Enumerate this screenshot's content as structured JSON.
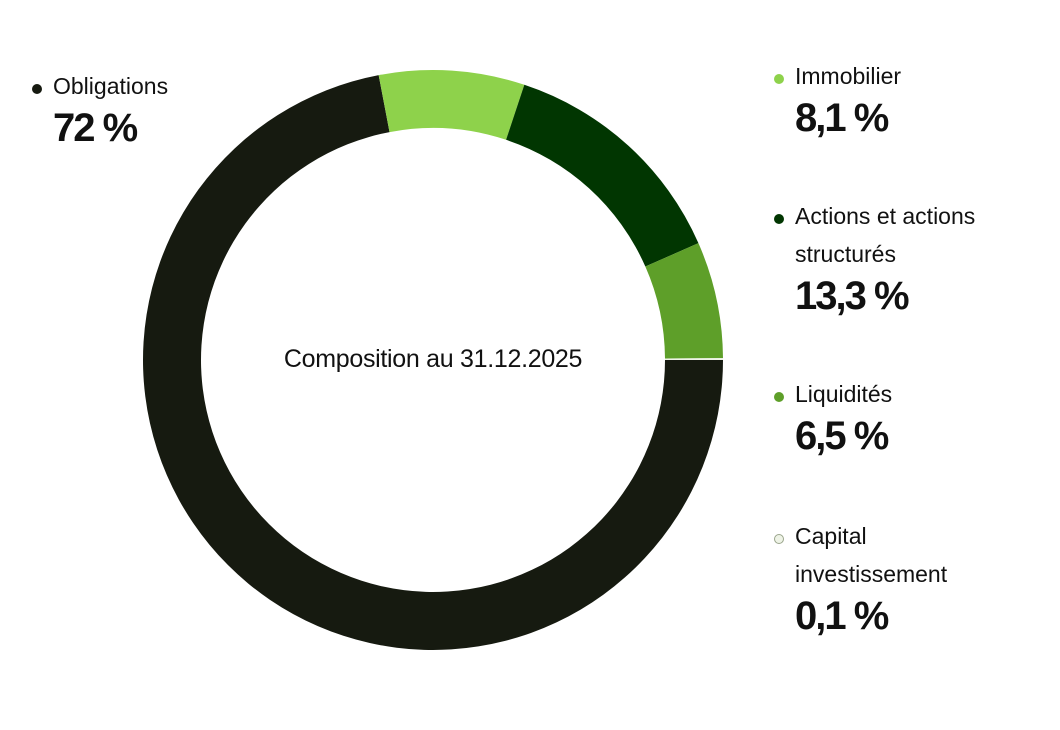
{
  "chart_data": {
    "type": "pie",
    "variant": "donut",
    "title": "Composition au 31.12.2025",
    "categories": [
      "Obligations",
      "Immobilier",
      "Actions et actions structurés",
      "Liquidités",
      "Capital investissement"
    ],
    "values": [
      72,
      8.1,
      13.3,
      6.5,
      0.1
    ],
    "value_labels": [
      "72 %",
      "8,1 %",
      "13,3 %",
      "6,5 %",
      "0,1 %"
    ],
    "colors": [
      "#161a10",
      "#8ed24b",
      "#013601",
      "#5e9f29",
      "#eef3e6"
    ],
    "unit": "%",
    "legend_position": "sides"
  },
  "center_label": "Composition au 31.12.2025",
  "legend": [
    {
      "label": "Obligations",
      "value": "72 %",
      "color": "#161a10"
    },
    {
      "label": "Immobilier",
      "value": "8,1 %",
      "color": "#8ed24b"
    },
    {
      "label": "Actions et actions structurés",
      "value": "13,3 %",
      "color": "#013601"
    },
    {
      "label": "Liquidités",
      "value": "6,5 %",
      "color": "#5e9f29"
    },
    {
      "label": "Capital investissement",
      "value": "0,1 %",
      "color": "#eef3e6"
    }
  ]
}
